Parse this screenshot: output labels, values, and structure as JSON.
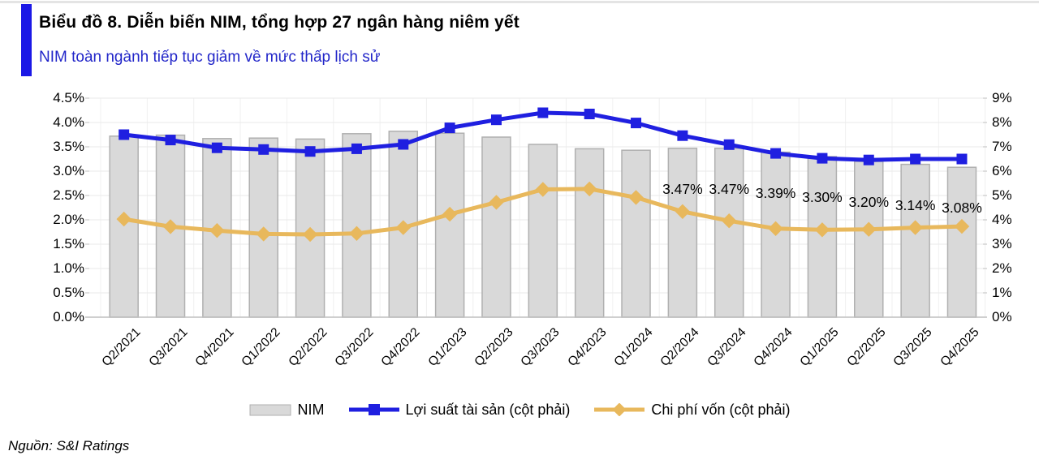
{
  "header": {
    "title": "Biểu đồ 8. Diễn biến NIM, tổng hợp 27 ngân hàng niêm yết",
    "subtitle": "NIM toàn ngành tiếp tục giảm về mức thấp lịch sử"
  },
  "footer": {
    "source": "Nguồn: S&I Ratings"
  },
  "colors": {
    "accent_blue": "#1b18e6",
    "subtitle_blue": "#2226c9",
    "line_blue": "#1f1fe0",
    "line_gold": "#e8b85c",
    "bar_fill": "#d9d9d9",
    "bar_border": "#b0b0b0",
    "grid": "#eaeaea",
    "axis_line": "#bfbfbf"
  },
  "chart_data": {
    "type": "bar",
    "subtype": "combo-bar-line-dual-axis",
    "title": "Biểu đồ 8. Diễn biến NIM, tổng hợp 27 ngân hàng niêm yết",
    "categories": [
      "Q2/2021",
      "Q3/2021",
      "Q4/2021",
      "Q1/2022",
      "Q2/2022",
      "Q3/2022",
      "Q4/2022",
      "Q1/2023",
      "Q2/2023",
      "Q3/2023",
      "Q4/2023",
      "Q1/2024",
      "Q2/2024",
      "Q3/2024",
      "Q4/2024",
      "Q1/2025",
      "Q2/2025",
      "Q3/2025",
      "Q4/2025"
    ],
    "series": [
      {
        "name": "NIM",
        "type": "bar",
        "axis": "left",
        "values": [
          3.72,
          3.74,
          3.67,
          3.68,
          3.66,
          3.77,
          3.82,
          3.78,
          3.7,
          3.55,
          3.46,
          3.43,
          3.47,
          3.47,
          3.39,
          3.3,
          3.2,
          3.14,
          3.08
        ]
      },
      {
        "name": "Lợi suất tài sản (cột phải)",
        "type": "line",
        "marker": "square",
        "axis": "right",
        "values": [
          7.5,
          7.28,
          6.96,
          6.89,
          6.81,
          6.92,
          7.1,
          7.78,
          8.11,
          8.4,
          8.35,
          7.98,
          7.46,
          7.09,
          6.73,
          6.53,
          6.46,
          6.5,
          6.5
        ]
      },
      {
        "name": "Chi phí vốn (cột phải)",
        "type": "line",
        "marker": "diamond",
        "axis": "right",
        "values": [
          4.03,
          3.72,
          3.56,
          3.42,
          3.4,
          3.44,
          3.68,
          4.23,
          4.72,
          5.25,
          5.27,
          4.92,
          4.34,
          3.96,
          3.64,
          3.59,
          3.61,
          3.68,
          3.73
        ]
      }
    ],
    "bar_labels": {
      "start_index": 12,
      "labels": [
        "3.47%",
        "3.47%",
        "3.39%",
        "3.30%",
        "3.20%",
        "3.14%",
        "3.08%"
      ]
    },
    "left_axis": {
      "min": 0,
      "max": 4.5,
      "step": 0.5,
      "ticks": [
        "4.5%",
        "4.0%",
        "3.5%",
        "3.0%",
        "2.5%",
        "2.0%",
        "1.5%",
        "1.0%",
        "0.5%",
        "0.0%"
      ]
    },
    "right_axis": {
      "min": 0,
      "max": 9,
      "step": 1,
      "ticks": [
        "9%",
        "8%",
        "7%",
        "6%",
        "5%",
        "4%",
        "3%",
        "2%",
        "1%",
        "0%"
      ]
    },
    "grid": true,
    "legend_position": "bottom"
  }
}
